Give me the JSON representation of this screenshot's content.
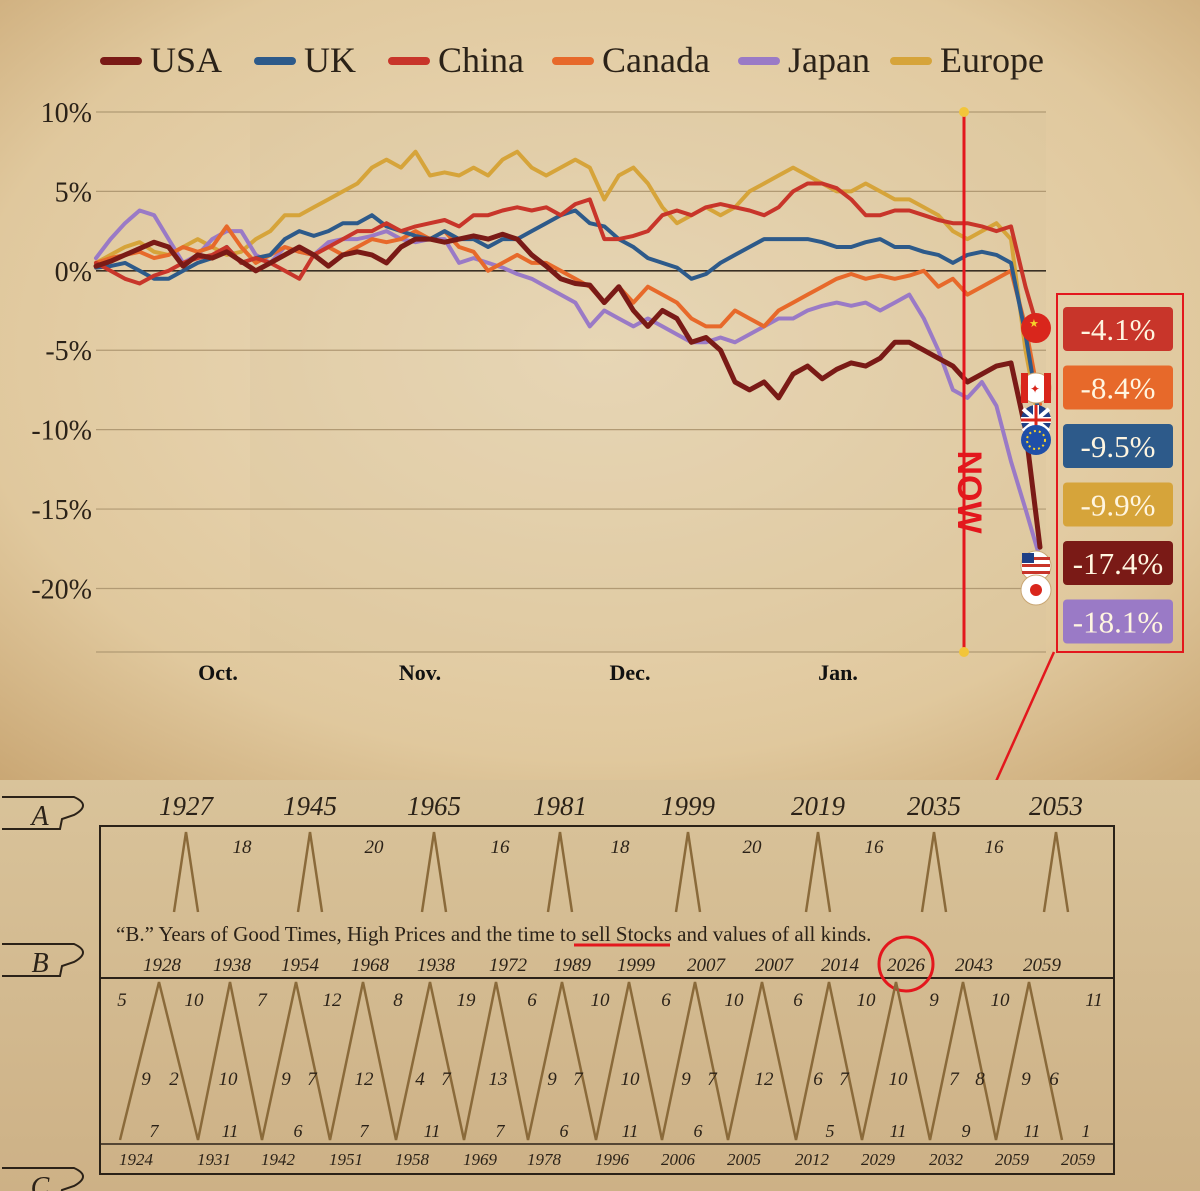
{
  "chart_data": {
    "type": "line",
    "title": "",
    "xlabel": "",
    "ylabel": "",
    "x_tick_labels": [
      "Oct.",
      "Nov.",
      "Dec.",
      "Jan."
    ],
    "y_tick_labels": [
      "10%",
      "5%",
      "0%",
      "-5%",
      "-10%",
      "-15%",
      "-20%"
    ],
    "ylim": [
      -24,
      10
    ],
    "grid": true,
    "legend_position": "top",
    "now_label": "NOW",
    "series": [
      {
        "name": "USA",
        "color": "#7a1a16",
        "end_label": "-17.4%",
        "values": [
          0.3,
          0.6,
          1.0,
          1.4,
          1.8,
          1.5,
          0.3,
          1.0,
          0.8,
          1.2,
          0.6,
          0.0,
          0.5,
          1.0,
          1.5,
          1.0,
          0.3,
          1.0,
          1.2,
          1.0,
          0.5,
          1.5,
          2.0,
          2.0,
          1.8,
          2.0,
          2.2,
          2.0,
          2.3,
          2.0,
          1.0,
          0.3,
          -0.5,
          -0.8,
          -0.9,
          -2.0,
          -1.0,
          -2.5,
          -3.5,
          -2.5,
          -3.0,
          -4.5,
          -4.2,
          -5.0,
          -7.0,
          -7.5,
          -7.0,
          -8.0,
          -6.5,
          -6.0,
          -6.8,
          -6.2,
          -5.8,
          -6.0,
          -5.5,
          -4.5,
          -4.5,
          -5.0,
          -5.5,
          -6.0,
          -7.0,
          -6.5,
          -6.0,
          -5.8,
          -10.0,
          -17.4
        ]
      },
      {
        "name": "UK",
        "color": "#2d5a8a",
        "end_label": "-9.5%",
        "values": [
          0.2,
          0.3,
          0.5,
          0.0,
          -0.5,
          -0.5,
          0.0,
          0.5,
          0.8,
          1.5,
          0.5,
          0.8,
          1.0,
          2.0,
          2.5,
          2.2,
          2.5,
          3.0,
          3.0,
          3.5,
          2.8,
          2.5,
          2.2,
          2.0,
          2.5,
          2.0,
          2.0,
          1.5,
          2.0,
          2.0,
          2.5,
          3.0,
          3.5,
          3.8,
          3.0,
          2.8,
          2.0,
          1.5,
          0.8,
          0.5,
          0.2,
          -0.5,
          -0.2,
          0.5,
          1.0,
          1.5,
          2.0,
          2.0,
          2.0,
          2.0,
          1.8,
          1.5,
          1.5,
          1.8,
          2.0,
          1.5,
          1.5,
          1.2,
          1.0,
          0.5,
          1.0,
          1.2,
          1.0,
          0.5,
          -4.0,
          -9.5
        ]
      },
      {
        "name": "China",
        "color": "#c8352a",
        "end_label": "-4.1%",
        "values": [
          0.5,
          0.0,
          -0.5,
          -0.8,
          -0.3,
          0.0,
          0.5,
          0.8,
          1.0,
          1.5,
          0.5,
          0.8,
          0.5,
          0.0,
          -0.5,
          1.0,
          1.5,
          2.0,
          2.5,
          2.5,
          3.0,
          2.5,
          2.8,
          3.0,
          3.2,
          2.8,
          3.5,
          3.5,
          3.8,
          4.0,
          3.8,
          4.0,
          3.5,
          4.2,
          4.5,
          2.0,
          2.0,
          2.2,
          2.5,
          3.5,
          3.8,
          3.5,
          4.0,
          4.2,
          4.0,
          3.8,
          3.5,
          4.0,
          5.0,
          5.5,
          5.5,
          5.2,
          4.5,
          3.5,
          3.5,
          3.8,
          3.8,
          3.5,
          3.2,
          3.0,
          3.0,
          2.8,
          2.5,
          2.8,
          -1.0,
          -4.1
        ]
      },
      {
        "name": "Canada",
        "color": "#e7692a",
        "end_label": "-8.4%",
        "values": [
          0.5,
          0.8,
          1.0,
          1.2,
          0.8,
          1.0,
          1.5,
          1.2,
          1.5,
          2.8,
          1.5,
          0.5,
          1.0,
          1.5,
          1.2,
          1.0,
          1.5,
          1.0,
          1.5,
          2.0,
          1.8,
          2.0,
          2.5,
          2.0,
          2.5,
          1.5,
          1.2,
          0.0,
          0.5,
          1.0,
          0.5,
          0.5,
          0.0,
          -0.5,
          -1.0,
          -2.0,
          -1.0,
          -2.0,
          -1.0,
          -1.5,
          -2.0,
          -3.0,
          -3.5,
          -3.5,
          -2.5,
          -3.0,
          -3.5,
          -2.5,
          -2.0,
          -1.5,
          -1.0,
          -0.5,
          -0.2,
          -0.5,
          -0.3,
          -0.5,
          -0.3,
          0.0,
          -1.0,
          -0.5,
          -1.5,
          -1.0,
          -0.5,
          0.0,
          -3.5,
          -8.4
        ]
      },
      {
        "name": "Japan",
        "color": "#9a7ac6",
        "end_label": "-18.1%",
        "values": [
          0.8,
          2.0,
          3.0,
          3.8,
          3.5,
          2.0,
          0.5,
          1.0,
          2.0,
          2.5,
          2.5,
          1.0,
          0.5,
          1.5,
          1.2,
          1.0,
          1.8,
          2.0,
          2.0,
          2.2,
          2.5,
          2.0,
          1.8,
          2.0,
          2.0,
          0.5,
          0.8,
          0.5,
          0.2,
          -0.2,
          -0.5,
          -1.0,
          -1.5,
          -2.0,
          -3.5,
          -2.5,
          -3.0,
          -3.5,
          -3.0,
          -3.5,
          -4.0,
          -4.5,
          -4.5,
          -4.2,
          -4.5,
          -4.0,
          -3.5,
          -3.0,
          -3.0,
          -2.5,
          -2.2,
          -2.0,
          -2.2,
          -2.0,
          -2.5,
          -2.0,
          -1.5,
          -3.0,
          -5.0,
          -7.5,
          -8.0,
          -7.0,
          -8.5,
          -12.0,
          -15.0,
          -18.1
        ]
      },
      {
        "name": "Europe",
        "color": "#d6a43a",
        "end_label": "-9.9%",
        "values": [
          0.5,
          1.0,
          1.5,
          1.8,
          1.2,
          1.0,
          1.5,
          2.0,
          1.5,
          1.0,
          1.2,
          2.0,
          2.5,
          3.5,
          3.5,
          4.0,
          4.5,
          5.0,
          5.5,
          6.5,
          7.0,
          6.5,
          7.5,
          6.0,
          6.2,
          6.0,
          6.5,
          6.0,
          7.0,
          7.5,
          6.5,
          6.0,
          6.5,
          7.0,
          6.5,
          4.5,
          6.0,
          6.5,
          5.5,
          4.0,
          3.0,
          3.5,
          4.0,
          3.5,
          4.0,
          5.0,
          5.5,
          6.0,
          6.5,
          6.0,
          5.5,
          5.0,
          5.0,
          5.5,
          5.0,
          4.5,
          4.5,
          4.0,
          3.5,
          2.5,
          2.0,
          2.5,
          3.0,
          2.0,
          -5.0,
          -9.9
        ]
      }
    ]
  },
  "cycle_chart": {
    "row_letters": [
      "A",
      "B",
      "C"
    ],
    "row_a_years": [
      "1927",
      "1945",
      "1965",
      "1981",
      "1999",
      "2019",
      "2035",
      "2053"
    ],
    "row_a_gaps": [
      "18",
      "20",
      "16",
      "18",
      "20",
      "16",
      "16"
    ],
    "row_b_caption": {
      "before": "“B.” Years of Good Times, High Prices and the ",
      "highlight": "time to sell",
      "after": " Stocks and values of all kinds."
    },
    "row_b_years": [
      "1928",
      "1938",
      "1954",
      "1968",
      "1938",
      "1972",
      "1989",
      "1999",
      "2007",
      "2007",
      "2014",
      "2026",
      "2043",
      "2059"
    ],
    "highlighted_year": "2026",
    "row_c_years": [
      "1924",
      "1931",
      "1942",
      "1951",
      "1958",
      "1969",
      "1978",
      "1996",
      "2006",
      "2005",
      "2012",
      "2029",
      "2032",
      "2059",
      "2059"
    ],
    "upper_gaps": [
      "5",
      "10",
      "7",
      "12",
      "8",
      "19",
      "6",
      "10",
      "6",
      "10",
      "6",
      "10",
      "9",
      "10",
      "11"
    ],
    "mid_numbers": [
      "9",
      "2",
      "10",
      "9",
      "7",
      "12",
      "4",
      "7",
      "13",
      "9",
      "7",
      "10",
      "9",
      "7",
      "12",
      "6",
      "7",
      "10",
      "7",
      "8",
      "9",
      "6"
    ],
    "lower_gaps": [
      "7",
      "11",
      "6",
      "7",
      "11",
      "7",
      "6",
      "11",
      "6",
      "5",
      "11",
      "9",
      "11",
      "1"
    ]
  }
}
